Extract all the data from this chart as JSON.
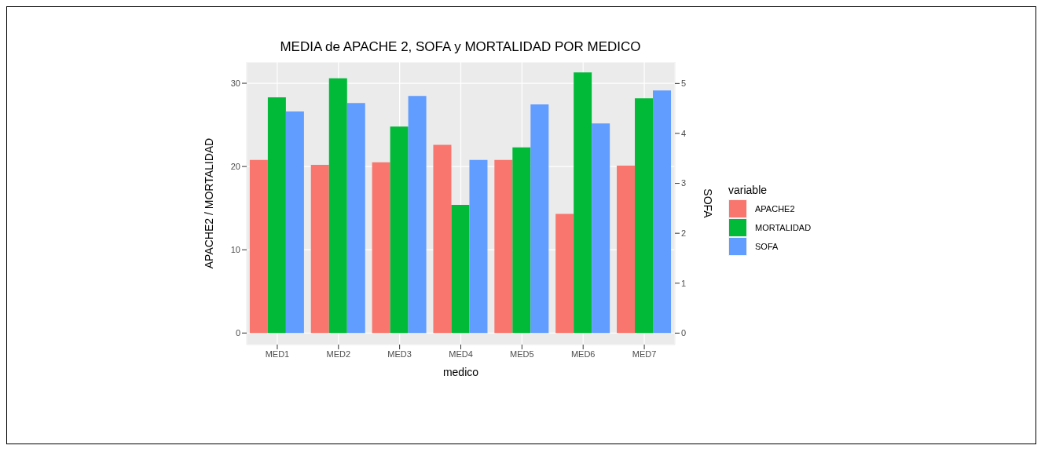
{
  "chart_data": {
    "type": "bar",
    "title": "MEDIA de APACHE 2, SOFA y MORTALIDAD POR MEDICO",
    "xlabel": "medico",
    "ylabel": "APACHE2 / MORTALIDAD",
    "y2label": "SOFA",
    "legend_title": "variable",
    "legend": "right",
    "grid": true,
    "categories": [
      "MED1",
      "MED2",
      "MED3",
      "MED4",
      "MED5",
      "MED6",
      "MED7"
    ],
    "series": [
      {
        "name": "APACHE2",
        "color": "#f8766d",
        "values": [
          20.8,
          20.2,
          20.5,
          22.6,
          20.8,
          14.3,
          20.1
        ]
      },
      {
        "name": "MORTALIDAD",
        "color": "#00ba38",
        "values": [
          28.3,
          30.6,
          24.8,
          15.4,
          22.3,
          31.3,
          28.2
        ]
      },
      {
        "name": "SOFA",
        "color": "#619cff",
        "axis": "y2",
        "values": [
          4.44,
          4.61,
          4.75,
          3.47,
          4.58,
          4.2,
          4.86
        ]
      }
    ],
    "ylim": [
      -1.39,
      32.55
    ],
    "yticks": [
      0,
      10,
      20,
      30
    ],
    "y2lim": [
      -0.23,
      5.43
    ],
    "y2ticks": [
      0,
      1,
      2,
      3,
      4,
      5
    ]
  }
}
